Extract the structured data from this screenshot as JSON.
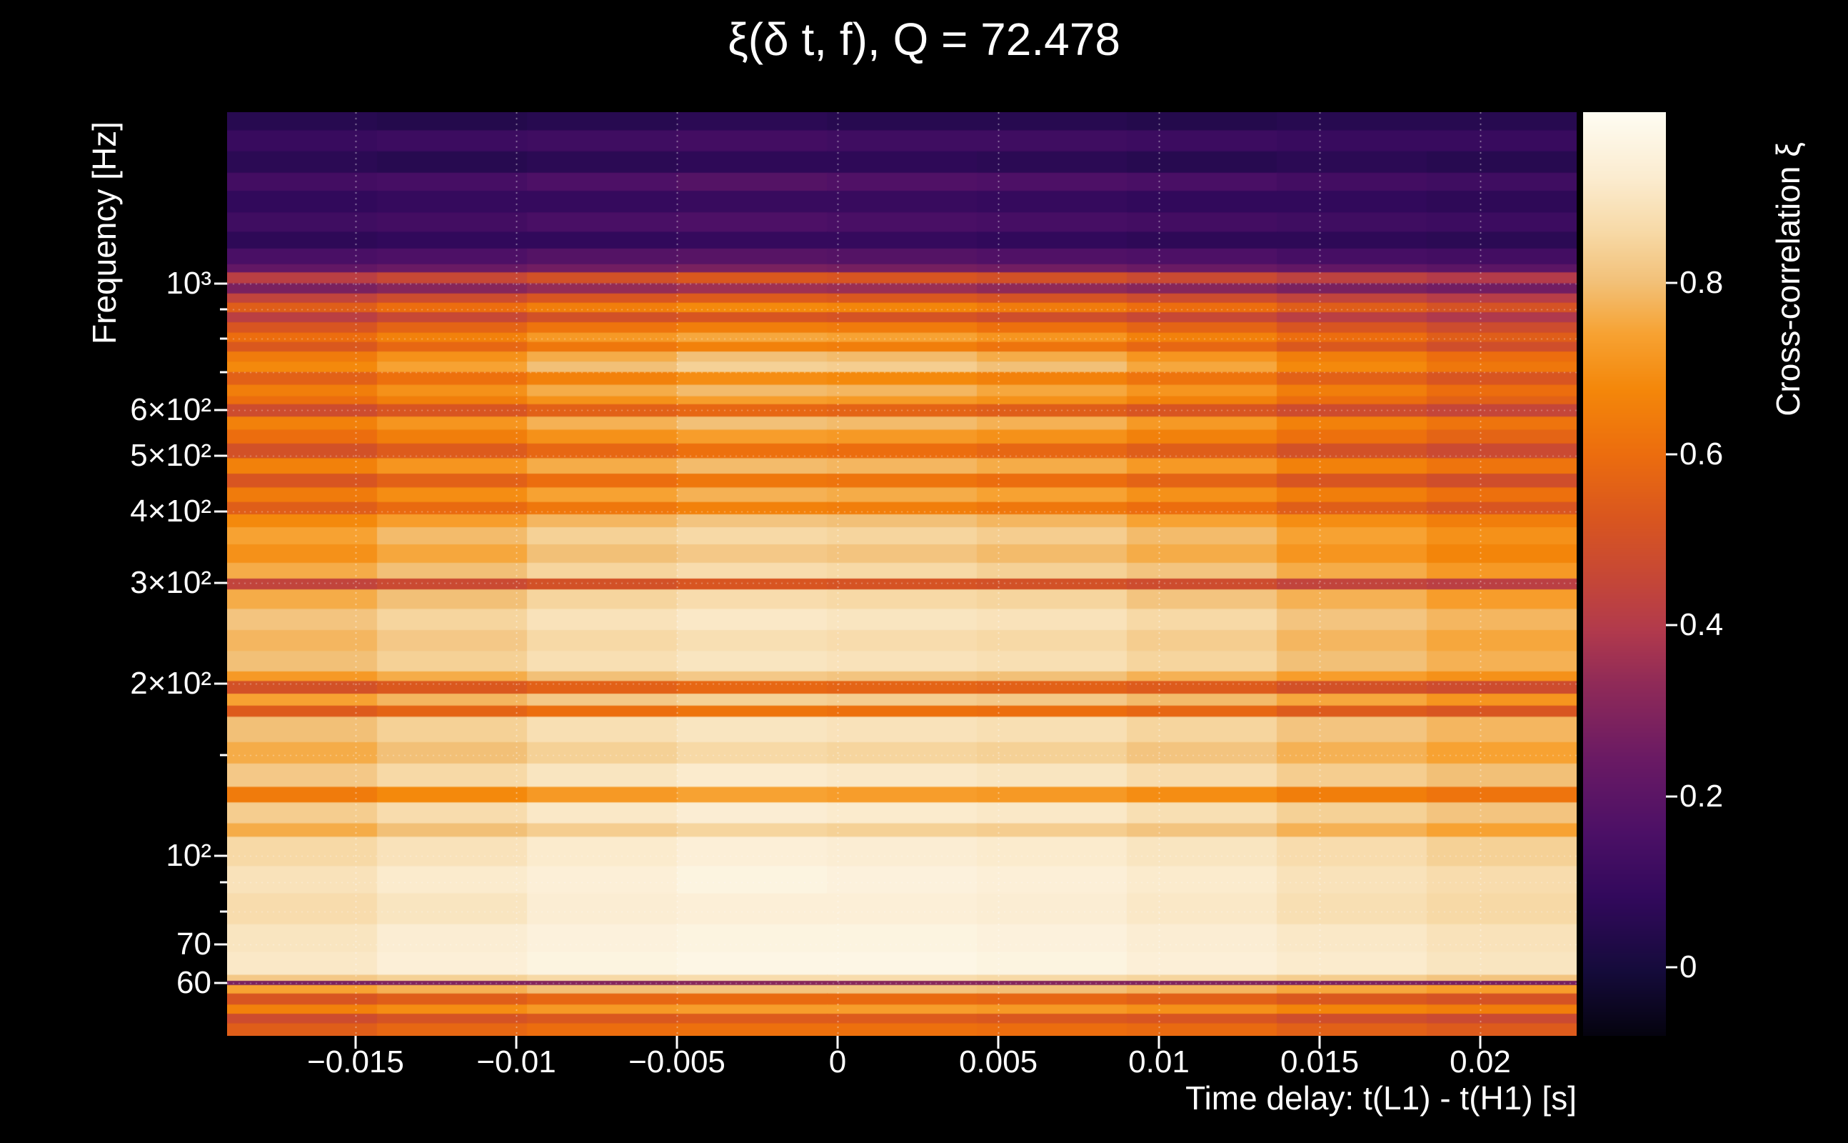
{
  "chart_data": {
    "type": "heatmap",
    "title": "ξ(δ t, f), Q = 72.478",
    "xlabel": "Time delay: t(L1) - t(H1) [s]",
    "ylabel": "Frequency [Hz]",
    "colorbar_label": "Cross-correlation ξ",
    "x_range": [
      -0.019,
      0.023
    ],
    "y_range_hz": [
      48.5,
      1990
    ],
    "y_scale": "log",
    "color_range": [
      -0.08,
      1.0
    ],
    "grid": {
      "style": "dotted",
      "color": "#ffffff"
    },
    "x_ticks": [
      {
        "v": -0.015,
        "label": "−0.015"
      },
      {
        "v": -0.01,
        "label": "−0.01"
      },
      {
        "v": -0.005,
        "label": "−0.005"
      },
      {
        "v": 0,
        "label": "0"
      },
      {
        "v": 0.005,
        "label": "0.005"
      },
      {
        "v": 0.01,
        "label": "0.01"
      },
      {
        "v": 0.015,
        "label": "0.015"
      },
      {
        "v": 0.02,
        "label": "0.02"
      }
    ],
    "y_ticks": [
      {
        "v": 1000,
        "label": "10³"
      },
      {
        "v": 600,
        "label": "6×10²"
      },
      {
        "v": 500,
        "label": "5×10²"
      },
      {
        "v": 400,
        "label": "4×10²"
      },
      {
        "v": 300,
        "label": "3×10²"
      },
      {
        "v": 200,
        "label": "2×10²"
      },
      {
        "v": 100,
        "label": "10²"
      },
      {
        "v": 70,
        "label": "70"
      },
      {
        "v": 60,
        "label": "60"
      }
    ],
    "y_minor_ticks": [
      900,
      800,
      700,
      150,
      90,
      80
    ],
    "colorbar_ticks": [
      {
        "v": 0.8,
        "label": "0.8"
      },
      {
        "v": 0.6,
        "label": "0.6"
      },
      {
        "v": 0.4,
        "label": "0.4"
      },
      {
        "v": 0.2,
        "label": "0.2"
      },
      {
        "v": 0,
        "label": "0"
      }
    ],
    "colormap_stops": [
      [
        0.0,
        "#05030f"
      ],
      [
        0.07,
        "#150b3b"
      ],
      [
        0.15,
        "#32095c"
      ],
      [
        0.22,
        "#4c1066"
      ],
      [
        0.3,
        "#6a1a64"
      ],
      [
        0.38,
        "#8f2a58"
      ],
      [
        0.44,
        "#b23a4c"
      ],
      [
        0.5,
        "#c74835"
      ],
      [
        0.56,
        "#d9561f"
      ],
      [
        0.63,
        "#ec6d0e"
      ],
      [
        0.7,
        "#f4870a"
      ],
      [
        0.76,
        "#f7a232"
      ],
      [
        0.815,
        "#f2c077"
      ],
      [
        0.87,
        "#f7d9a6"
      ],
      [
        0.93,
        "#fbecd0"
      ],
      [
        1.0,
        "#fefcf2"
      ]
    ],
    "heatmap": {
      "x_edges_range": [
        -0.019,
        0.023
      ],
      "n_cols": 9,
      "rows": [
        {
          "f": [
            1850,
            1990
          ],
          "xi": [
            0.05,
            0.04,
            0.05,
            0.06,
            0.05,
            0.05,
            0.04,
            0.05,
            0.05
          ]
        },
        {
          "f": [
            1700,
            1850
          ],
          "xi": [
            0.1,
            0.11,
            0.12,
            0.13,
            0.12,
            0.12,
            0.11,
            0.1,
            0.1
          ]
        },
        {
          "f": [
            1560,
            1700
          ],
          "xi": [
            0.06,
            0.05,
            0.06,
            0.07,
            0.07,
            0.06,
            0.05,
            0.06,
            0.05
          ]
        },
        {
          "f": [
            1450,
            1560
          ],
          "xi": [
            0.13,
            0.14,
            0.16,
            0.18,
            0.17,
            0.16,
            0.15,
            0.13,
            0.12
          ]
        },
        {
          "f": [
            1330,
            1450
          ],
          "xi": [
            0.08,
            0.09,
            0.09,
            0.1,
            0.1,
            0.09,
            0.08,
            0.08,
            0.07
          ]
        },
        {
          "f": [
            1230,
            1330
          ],
          "xi": [
            0.12,
            0.13,
            0.15,
            0.16,
            0.15,
            0.14,
            0.13,
            0.12,
            0.11
          ]
        },
        {
          "f": [
            1150,
            1230
          ],
          "xi": [
            0.07,
            0.08,
            0.08,
            0.09,
            0.09,
            0.08,
            0.07,
            0.07,
            0.06
          ]
        },
        {
          "f": [
            1080,
            1150
          ],
          "xi": [
            0.15,
            0.16,
            0.18,
            0.19,
            0.18,
            0.17,
            0.16,
            0.14,
            0.13
          ]
        },
        {
          "f": [
            1045,
            1080
          ],
          "xi": [
            0.22,
            0.24,
            0.26,
            0.28,
            0.27,
            0.26,
            0.24,
            0.22,
            0.2
          ]
        },
        {
          "f": [
            1000,
            1045
          ],
          "xi": [
            0.42,
            0.46,
            0.5,
            0.53,
            0.52,
            0.5,
            0.47,
            0.43,
            0.4
          ]
        },
        {
          "f": [
            960,
            1000
          ],
          "xi": [
            0.28,
            0.31,
            0.34,
            0.36,
            0.35,
            0.33,
            0.31,
            0.28,
            0.26
          ]
        },
        {
          "f": [
            925,
            960
          ],
          "xi": [
            0.44,
            0.48,
            0.52,
            0.54,
            0.53,
            0.51,
            0.48,
            0.44,
            0.41
          ]
        },
        {
          "f": [
            890,
            925
          ],
          "xi": [
            0.55,
            0.6,
            0.65,
            0.68,
            0.67,
            0.64,
            0.6,
            0.55,
            0.51
          ]
        },
        {
          "f": [
            855,
            890
          ],
          "xi": [
            0.42,
            0.46,
            0.5,
            0.52,
            0.51,
            0.49,
            0.46,
            0.42,
            0.39
          ]
        },
        {
          "f": [
            820,
            855
          ],
          "xi": [
            0.52,
            0.57,
            0.62,
            0.65,
            0.64,
            0.61,
            0.57,
            0.52,
            0.48
          ]
        },
        {
          "f": [
            790,
            820
          ],
          "xi": [
            0.6,
            0.66,
            0.72,
            0.75,
            0.74,
            0.71,
            0.66,
            0.6,
            0.55
          ]
        },
        {
          "f": [
            760,
            790
          ],
          "xi": [
            0.53,
            0.58,
            0.63,
            0.66,
            0.65,
            0.62,
            0.58,
            0.53,
            0.49
          ]
        },
        {
          "f": [
            730,
            760
          ],
          "xi": [
            0.64,
            0.7,
            0.76,
            0.8,
            0.79,
            0.76,
            0.71,
            0.65,
            0.6
          ]
        },
        {
          "f": [
            700,
            730
          ],
          "xi": [
            0.68,
            0.74,
            0.8,
            0.84,
            0.83,
            0.8,
            0.75,
            0.68,
            0.63
          ]
        },
        {
          "f": [
            665,
            700
          ],
          "xi": [
            0.56,
            0.61,
            0.66,
            0.69,
            0.68,
            0.66,
            0.62,
            0.56,
            0.52
          ]
        },
        {
          "f": [
            635,
            665
          ],
          "xi": [
            0.65,
            0.7,
            0.76,
            0.79,
            0.78,
            0.75,
            0.71,
            0.65,
            0.6
          ]
        },
        {
          "f": [
            615,
            635
          ],
          "xi": [
            0.6,
            0.65,
            0.7,
            0.73,
            0.72,
            0.7,
            0.66,
            0.6,
            0.56
          ]
        },
        {
          "f": [
            585,
            615
          ],
          "xi": [
            0.48,
            0.52,
            0.56,
            0.58,
            0.57,
            0.55,
            0.52,
            0.48,
            0.45
          ]
        },
        {
          "f": [
            555,
            585
          ],
          "xi": [
            0.66,
            0.71,
            0.77,
            0.8,
            0.79,
            0.77,
            0.72,
            0.66,
            0.62
          ]
        },
        {
          "f": [
            525,
            555
          ],
          "xi": [
            0.6,
            0.65,
            0.7,
            0.73,
            0.72,
            0.7,
            0.66,
            0.61,
            0.57
          ]
        },
        {
          "f": [
            495,
            525
          ],
          "xi": [
            0.5,
            0.54,
            0.58,
            0.61,
            0.6,
            0.58,
            0.55,
            0.5,
            0.47
          ]
        },
        {
          "f": [
            465,
            495
          ],
          "xi": [
            0.66,
            0.71,
            0.76,
            0.79,
            0.78,
            0.76,
            0.72,
            0.66,
            0.62
          ]
        },
        {
          "f": [
            440,
            465
          ],
          "xi": [
            0.52,
            0.56,
            0.6,
            0.63,
            0.62,
            0.6,
            0.57,
            0.52,
            0.49
          ]
        },
        {
          "f": [
            415,
            440
          ],
          "xi": [
            0.64,
            0.69,
            0.74,
            0.77,
            0.76,
            0.74,
            0.7,
            0.65,
            0.61
          ]
        },
        {
          "f": [
            395,
            415
          ],
          "xi": [
            0.55,
            0.59,
            0.63,
            0.66,
            0.65,
            0.63,
            0.6,
            0.55,
            0.52
          ]
        },
        {
          "f": [
            375,
            395
          ],
          "xi": [
            0.68,
            0.73,
            0.78,
            0.81,
            0.8,
            0.78,
            0.74,
            0.69,
            0.65
          ]
        },
        {
          "f": [
            350,
            375
          ],
          "xi": [
            0.74,
            0.79,
            0.84,
            0.86,
            0.85,
            0.83,
            0.79,
            0.74,
            0.7
          ]
        },
        {
          "f": [
            325,
            350
          ],
          "xi": [
            0.7,
            0.75,
            0.8,
            0.82,
            0.81,
            0.79,
            0.76,
            0.71,
            0.67
          ]
        },
        {
          "f": [
            305,
            325
          ],
          "xi": [
            0.76,
            0.8,
            0.85,
            0.87,
            0.86,
            0.84,
            0.81,
            0.76,
            0.72
          ]
        },
        {
          "f": [
            292,
            305
          ],
          "xi": [
            0.44,
            0.47,
            0.5,
            0.52,
            0.51,
            0.5,
            0.48,
            0.44,
            0.42
          ]
        },
        {
          "f": [
            270,
            292
          ],
          "xi": [
            0.76,
            0.8,
            0.85,
            0.87,
            0.86,
            0.85,
            0.81,
            0.77,
            0.73
          ]
        },
        {
          "f": [
            248,
            270
          ],
          "xi": [
            0.81,
            0.85,
            0.89,
            0.91,
            0.9,
            0.89,
            0.86,
            0.81,
            0.78
          ]
        },
        {
          "f": [
            228,
            248
          ],
          "xi": [
            0.78,
            0.82,
            0.86,
            0.88,
            0.87,
            0.86,
            0.83,
            0.78,
            0.75
          ]
        },
        {
          "f": [
            210,
            228
          ],
          "xi": [
            0.8,
            0.84,
            0.88,
            0.9,
            0.89,
            0.88,
            0.85,
            0.8,
            0.77
          ]
        },
        {
          "f": [
            202,
            210
          ],
          "xi": [
            0.72,
            0.76,
            0.8,
            0.82,
            0.81,
            0.8,
            0.77,
            0.73,
            0.7
          ]
        },
        {
          "f": [
            192,
            202
          ],
          "xi": [
            0.5,
            0.53,
            0.56,
            0.58,
            0.57,
            0.56,
            0.54,
            0.5,
            0.48
          ]
        },
        {
          "f": [
            183,
            192
          ],
          "xi": [
            0.74,
            0.78,
            0.82,
            0.84,
            0.83,
            0.82,
            0.79,
            0.75,
            0.71
          ]
        },
        {
          "f": [
            175,
            183
          ],
          "xi": [
            0.54,
            0.57,
            0.6,
            0.62,
            0.61,
            0.6,
            0.58,
            0.54,
            0.52
          ]
        },
        {
          "f": [
            158,
            175
          ],
          "xi": [
            0.8,
            0.84,
            0.88,
            0.9,
            0.89,
            0.88,
            0.85,
            0.81,
            0.78
          ]
        },
        {
          "f": [
            145,
            158
          ],
          "xi": [
            0.76,
            0.8,
            0.84,
            0.86,
            0.85,
            0.84,
            0.81,
            0.77,
            0.74
          ]
        },
        {
          "f": [
            132,
            145
          ],
          "xi": [
            0.82,
            0.86,
            0.9,
            0.92,
            0.91,
            0.9,
            0.87,
            0.83,
            0.8
          ]
        },
        {
          "f": [
            124,
            132
          ],
          "xi": [
            0.64,
            0.68,
            0.72,
            0.74,
            0.73,
            0.72,
            0.69,
            0.65,
            0.62
          ]
        },
        {
          "f": [
            114,
            124
          ],
          "xi": [
            0.83,
            0.87,
            0.91,
            0.93,
            0.92,
            0.91,
            0.88,
            0.84,
            0.81
          ]
        },
        {
          "f": [
            108,
            114
          ],
          "xi": [
            0.76,
            0.8,
            0.83,
            0.85,
            0.84,
            0.83,
            0.81,
            0.77,
            0.74
          ]
        },
        {
          "f": [
            96,
            108
          ],
          "xi": [
            0.86,
            0.89,
            0.92,
            0.94,
            0.93,
            0.92,
            0.9,
            0.87,
            0.84
          ]
        },
        {
          "f": [
            86,
            96
          ],
          "xi": [
            0.89,
            0.92,
            0.94,
            0.96,
            0.95,
            0.94,
            0.92,
            0.89,
            0.87
          ]
        },
        {
          "f": [
            76,
            86
          ],
          "xi": [
            0.87,
            0.9,
            0.93,
            0.94,
            0.94,
            0.93,
            0.91,
            0.88,
            0.86
          ]
        },
        {
          "f": [
            68,
            76
          ],
          "xi": [
            0.9,
            0.93,
            0.95,
            0.96,
            0.96,
            0.95,
            0.93,
            0.91,
            0.89
          ]
        },
        {
          "f": [
            62,
            68
          ],
          "xi": [
            0.91,
            0.94,
            0.96,
            0.97,
            0.97,
            0.96,
            0.94,
            0.92,
            0.9
          ]
        },
        {
          "f": [
            60.5,
            62
          ],
          "xi": [
            0.82,
            0.84,
            0.86,
            0.87,
            0.87,
            0.86,
            0.85,
            0.83,
            0.81
          ]
        },
        {
          "f": [
            59.5,
            60.5
          ],
          "xi": [
            0.28,
            0.29,
            0.3,
            0.31,
            0.31,
            0.3,
            0.29,
            0.28,
            0.27
          ]
        },
        {
          "f": [
            57.5,
            59.5
          ],
          "xi": [
            0.74,
            0.77,
            0.8,
            0.81,
            0.81,
            0.8,
            0.78,
            0.75,
            0.73
          ]
        },
        {
          "f": [
            55,
            57.5
          ],
          "xi": [
            0.52,
            0.55,
            0.58,
            0.59,
            0.59,
            0.58,
            0.56,
            0.53,
            0.51
          ]
        },
        {
          "f": [
            53,
            55
          ],
          "xi": [
            0.66,
            0.69,
            0.72,
            0.73,
            0.73,
            0.72,
            0.7,
            0.67,
            0.65
          ]
        },
        {
          "f": [
            51,
            53
          ],
          "xi": [
            0.48,
            0.51,
            0.53,
            0.54,
            0.54,
            0.53,
            0.52,
            0.49,
            0.47
          ]
        },
        {
          "f": [
            48.5,
            51
          ],
          "xi": [
            0.55,
            0.58,
            0.6,
            0.61,
            0.61,
            0.6,
            0.59,
            0.56,
            0.54
          ]
        }
      ]
    }
  }
}
